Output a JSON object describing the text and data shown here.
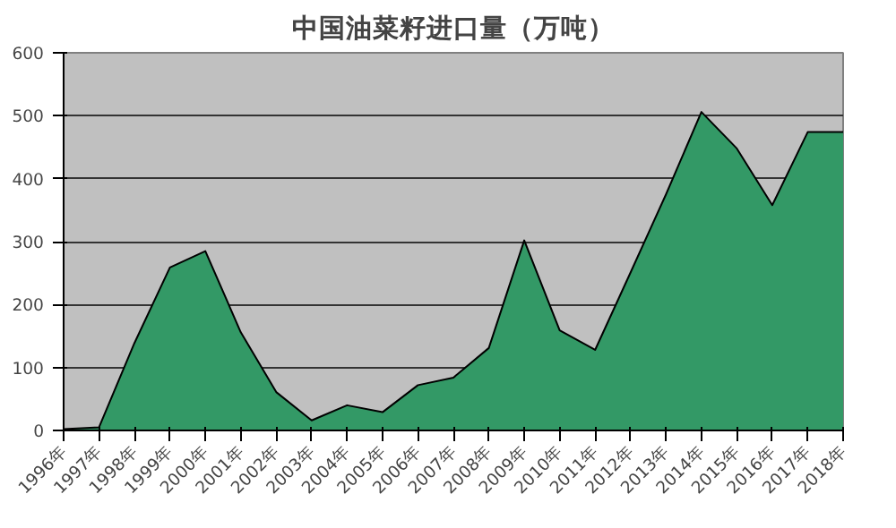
{
  "chart_data": {
    "type": "area",
    "title": "中国油菜籽进口量（万吨）",
    "categories": [
      "1996年",
      "1997年",
      "1998年",
      "1999年",
      "2000年",
      "2001年",
      "2002年",
      "2003年",
      "2004年",
      "2005年",
      "2006年",
      "2007年",
      "2008年",
      "2009年",
      "2010年",
      "2011年",
      "2012年",
      "2013年",
      "2014年",
      "2015年",
      "2016年",
      "2017年",
      "2018年"
    ],
    "series": [
      {
        "color": "#339966",
        "values": [
          2,
          5,
          139,
          259,
          285,
          156,
          61,
          16,
          40,
          29,
          72,
          84,
          131,
          302,
          159,
          128,
          251,
          375,
          506,
          448,
          358,
          474,
          474
        ]
      }
    ],
    "ylim": [
      0,
      600
    ],
    "yticks": [
      0,
      100,
      200,
      300,
      400,
      500,
      600
    ],
    "grid": "y"
  }
}
